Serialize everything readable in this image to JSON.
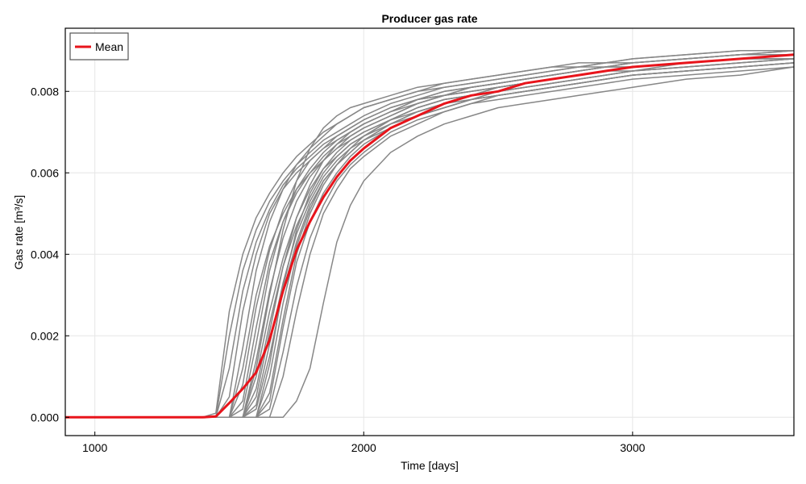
{
  "chart_data": {
    "type": "line",
    "title": "Producer gas rate",
    "xlabel": "Time [days]",
    "ylabel": "Gas rate [m³/s]",
    "xlim": [
      890,
      3600
    ],
    "ylim": [
      -0.00045,
      0.00955
    ],
    "xticks": [
      1000,
      2000,
      3000
    ],
    "xtick_labels": [
      "1000",
      "2000",
      "3000"
    ],
    "yticks": [
      0,
      0.002,
      0.004,
      0.006,
      0.008
    ],
    "ytick_labels": [
      "0.000",
      "0.002",
      "0.004",
      "0.006",
      "0.008"
    ],
    "grid": true,
    "legend": {
      "position": "top-left",
      "entries": [
        "Mean"
      ]
    },
    "colors": {
      "ensemble": "#878787",
      "mean": "#e8141b"
    },
    "x": [
      890,
      1400,
      1450,
      1500,
      1550,
      1600,
      1650,
      1700,
      1750,
      1800,
      1850,
      1900,
      1950,
      2000,
      2100,
      2200,
      2300,
      2400,
      2500,
      2600,
      2700,
      2800,
      2900,
      3000,
      3200,
      3400,
      3600
    ],
    "series": [
      {
        "name": "Mean",
        "values": [
          0,
          0,
          2e-05,
          0.00035,
          0.0007,
          0.0011,
          0.0019,
          0.0031,
          0.0041,
          0.0048,
          0.0054,
          0.0059,
          0.0063,
          0.0066,
          0.0071,
          0.0074,
          0.0077,
          0.0079,
          0.008,
          0.0082,
          0.0083,
          0.0084,
          0.0085,
          0.0086,
          0.0087,
          0.0088,
          0.0089
        ]
      },
      {
        "values": [
          0,
          0,
          0.0001,
          0.0026,
          0.004,
          0.0049,
          0.0055,
          0.006,
          0.0064,
          0.0067,
          0.007,
          0.0072,
          0.0074,
          0.0076,
          0.0078,
          0.008,
          0.0082,
          0.0083,
          0.0084,
          0.0085,
          0.0086,
          0.0087,
          0.0087,
          0.0088,
          0.0089,
          0.009,
          0.009
        ]
      },
      {
        "values": [
          0,
          0,
          0,
          0.002,
          0.0036,
          0.0046,
          0.0053,
          0.0058,
          0.0062,
          0.0065,
          0.0068,
          0.007,
          0.0072,
          0.0074,
          0.0077,
          0.0079,
          0.0081,
          0.0082,
          0.0083,
          0.0084,
          0.0085,
          0.0086,
          0.0087,
          0.0087,
          0.0088,
          0.0089,
          0.009
        ]
      },
      {
        "values": [
          0,
          0,
          0,
          0.0012,
          0.0031,
          0.0043,
          0.0051,
          0.0057,
          0.0061,
          0.0064,
          0.0067,
          0.0069,
          0.0071,
          0.0073,
          0.0076,
          0.0078,
          0.008,
          0.0081,
          0.0082,
          0.0083,
          0.0084,
          0.0085,
          0.0086,
          0.0086,
          0.0087,
          0.0088,
          0.0089
        ]
      },
      {
        "values": [
          0,
          0,
          0,
          0.0005,
          0.0026,
          0.004,
          0.005,
          0.0056,
          0.006,
          0.0063,
          0.0066,
          0.0068,
          0.007,
          0.0072,
          0.0075,
          0.0077,
          0.0079,
          0.008,
          0.0081,
          0.0082,
          0.0083,
          0.0084,
          0.0085,
          0.0086,
          0.0087,
          0.0088,
          0.0088
        ]
      },
      {
        "values": [
          0,
          0,
          0,
          0,
          0.0017,
          0.0036,
          0.0048,
          0.0056,
          0.0062,
          0.0066,
          0.0069,
          0.0072,
          0.0074,
          0.0076,
          0.0078,
          0.008,
          0.0081,
          0.0082,
          0.0083,
          0.0084,
          0.0085,
          0.0086,
          0.0086,
          0.0087,
          0.0088,
          0.0089,
          0.009
        ]
      },
      {
        "values": [
          0,
          0,
          0,
          0,
          0.0012,
          0.003,
          0.0042,
          0.005,
          0.0056,
          0.006,
          0.0064,
          0.0067,
          0.0069,
          0.0071,
          0.0074,
          0.0077,
          0.0079,
          0.008,
          0.0081,
          0.0082,
          0.0083,
          0.0084,
          0.0085,
          0.0086,
          0.0087,
          0.0088,
          0.0089
        ]
      },
      {
        "values": [
          0,
          0,
          0,
          0,
          0.0008,
          0.0027,
          0.0041,
          0.0051,
          0.0058,
          0.0063,
          0.0066,
          0.0069,
          0.0071,
          0.0073,
          0.0076,
          0.0078,
          0.008,
          0.0081,
          0.0082,
          0.0083,
          0.0084,
          0.0085,
          0.0086,
          0.0087,
          0.0088,
          0.0089,
          0.0089
        ]
      },
      {
        "values": [
          0,
          0,
          0,
          0,
          0.0004,
          0.0022,
          0.0038,
          0.0048,
          0.0055,
          0.006,
          0.0063,
          0.0066,
          0.0068,
          0.007,
          0.0073,
          0.0076,
          0.0078,
          0.0079,
          0.0081,
          0.0082,
          0.0083,
          0.0084,
          0.0085,
          0.0086,
          0.0087,
          0.0088,
          0.0088
        ]
      },
      {
        "values": [
          0,
          0,
          0,
          0,
          0.0002,
          0.0018,
          0.0036,
          0.0048,
          0.0056,
          0.0061,
          0.0065,
          0.0068,
          0.007,
          0.0072,
          0.0075,
          0.0078,
          0.0079,
          0.0081,
          0.0082,
          0.0083,
          0.0084,
          0.0085,
          0.0086,
          0.0086,
          0.0087,
          0.0088,
          0.0089
        ]
      },
      {
        "values": [
          0,
          0,
          0,
          0,
          0,
          0.0014,
          0.0031,
          0.0044,
          0.0053,
          0.0059,
          0.0063,
          0.0066,
          0.0069,
          0.0071,
          0.0074,
          0.0077,
          0.0079,
          0.008,
          0.0081,
          0.0082,
          0.0083,
          0.0084,
          0.0085,
          0.0086,
          0.0087,
          0.0088,
          0.0089
        ]
      },
      {
        "values": [
          0,
          0,
          0,
          0,
          0,
          0.0012,
          0.003,
          0.0046,
          0.0058,
          0.0066,
          0.0071,
          0.0074,
          0.0076,
          0.0077,
          0.0079,
          0.0081,
          0.0082,
          0.0083,
          0.0084,
          0.0085,
          0.0086,
          0.0086,
          0.0087,
          0.0088,
          0.0089,
          0.009,
          0.009
        ]
      },
      {
        "values": [
          0,
          0,
          0,
          0,
          0,
          0.001,
          0.0026,
          0.0039,
          0.0049,
          0.0056,
          0.0061,
          0.0064,
          0.0067,
          0.0069,
          0.0073,
          0.0076,
          0.0078,
          0.0079,
          0.0081,
          0.0082,
          0.0083,
          0.0084,
          0.0085,
          0.0085,
          0.0087,
          0.0088,
          0.0088
        ]
      },
      {
        "values": [
          0,
          0,
          0,
          0,
          0,
          0.0007,
          0.0023,
          0.0037,
          0.0047,
          0.0054,
          0.006,
          0.0064,
          0.0067,
          0.0069,
          0.0073,
          0.0075,
          0.0077,
          0.0079,
          0.008,
          0.0081,
          0.0082,
          0.0083,
          0.0084,
          0.0085,
          0.0086,
          0.0087,
          0.0088
        ]
      },
      {
        "values": [
          0,
          0,
          0,
          0,
          0,
          0.0005,
          0.0021,
          0.0037,
          0.0049,
          0.0057,
          0.0063,
          0.0067,
          0.007,
          0.0072,
          0.0075,
          0.0078,
          0.0079,
          0.0081,
          0.0082,
          0.0083,
          0.0084,
          0.0085,
          0.0086,
          0.0087,
          0.0088,
          0.0089,
          0.0089
        ]
      },
      {
        "values": [
          0,
          0,
          0,
          0,
          0,
          0.0003,
          0.0018,
          0.0033,
          0.0045,
          0.0053,
          0.0059,
          0.0063,
          0.0066,
          0.0069,
          0.0072,
          0.0075,
          0.0077,
          0.0079,
          0.008,
          0.0081,
          0.0082,
          0.0083,
          0.0084,
          0.0085,
          0.0086,
          0.0087,
          0.0088
        ]
      },
      {
        "values": [
          0,
          0,
          0,
          0,
          0,
          0.0002,
          0.0015,
          0.0031,
          0.0043,
          0.0052,
          0.0058,
          0.0062,
          0.0065,
          0.0068,
          0.0071,
          0.0074,
          0.0076,
          0.0078,
          0.0079,
          0.008,
          0.0081,
          0.0082,
          0.0083,
          0.0084,
          0.0085,
          0.0086,
          0.0087
        ]
      },
      {
        "values": [
          0,
          0,
          0,
          0,
          0,
          0,
          0.0013,
          0.0032,
          0.0046,
          0.0055,
          0.0061,
          0.0065,
          0.0068,
          0.007,
          0.0073,
          0.0076,
          0.0078,
          0.0079,
          0.0081,
          0.0082,
          0.0083,
          0.0084,
          0.0085,
          0.0086,
          0.0087,
          0.0088,
          0.0089
        ]
      },
      {
        "values": [
          0,
          0,
          0,
          0,
          0,
          0,
          0.001,
          0.0028,
          0.0042,
          0.0051,
          0.0058,
          0.0062,
          0.0066,
          0.0068,
          0.0072,
          0.0075,
          0.0077,
          0.0078,
          0.008,
          0.0081,
          0.0082,
          0.0083,
          0.0084,
          0.0085,
          0.0086,
          0.0087,
          0.0088
        ]
      },
      {
        "values": [
          0,
          0,
          0,
          0,
          0,
          0,
          0.0006,
          0.0024,
          0.004,
          0.005,
          0.0057,
          0.0062,
          0.0065,
          0.0068,
          0.0072,
          0.0074,
          0.0076,
          0.0078,
          0.0079,
          0.008,
          0.0081,
          0.0082,
          0.0083,
          0.0084,
          0.0085,
          0.0086,
          0.0087
        ]
      },
      {
        "values": [
          0,
          0,
          0,
          0,
          0,
          0,
          0.0004,
          0.0022,
          0.0038,
          0.0048,
          0.0055,
          0.006,
          0.0064,
          0.0067,
          0.0071,
          0.0074,
          0.0076,
          0.0078,
          0.0079,
          0.008,
          0.0081,
          0.0082,
          0.0083,
          0.0084,
          0.0085,
          0.0086,
          0.0087
        ]
      },
      {
        "values": [
          0,
          0,
          0,
          0,
          0,
          0,
          0.0002,
          0.0016,
          0.0032,
          0.0044,
          0.0052,
          0.0058,
          0.0062,
          0.0065,
          0.007,
          0.0073,
          0.0075,
          0.0077,
          0.0079,
          0.008,
          0.0081,
          0.0082,
          0.0083,
          0.0084,
          0.0085,
          0.0086,
          0.0087
        ]
      },
      {
        "values": [
          0,
          0,
          0,
          0,
          0,
          0,
          0,
          0.001,
          0.0026,
          0.004,
          0.005,
          0.0056,
          0.0061,
          0.0064,
          0.0069,
          0.0072,
          0.0075,
          0.0077,
          0.0078,
          0.0079,
          0.008,
          0.0081,
          0.0082,
          0.0083,
          0.0084,
          0.0085,
          0.0086
        ]
      },
      {
        "values": [
          0,
          0,
          0,
          0,
          0,
          0,
          0,
          0,
          0.0004,
          0.0012,
          0.0028,
          0.0043,
          0.0052,
          0.0058,
          0.0065,
          0.0069,
          0.0072,
          0.0074,
          0.0076,
          0.0077,
          0.0078,
          0.0079,
          0.008,
          0.0081,
          0.0083,
          0.0084,
          0.0086
        ]
      }
    ]
  }
}
